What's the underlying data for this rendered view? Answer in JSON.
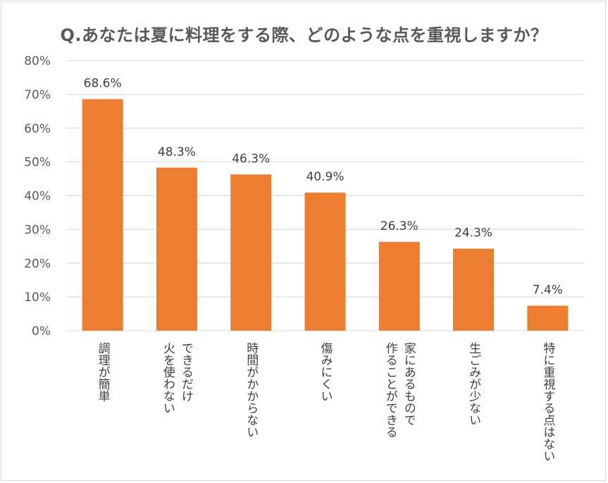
{
  "chart_data": {
    "type": "bar",
    "title": "Q.あなたは夏に料理をする際、どのような点を重視しますか？",
    "categories": [
      [
        "調理が簡単"
      ],
      [
        "火を使わない",
        "できるだけ"
      ],
      [
        "時間がかからない"
      ],
      [
        "傷みにくい"
      ],
      [
        "作ることができる",
        "家にあるもので"
      ],
      [
        "生ごみが少ない"
      ],
      [
        "特に重視する点はない"
      ]
    ],
    "values": [
      68.6,
      48.3,
      46.3,
      40.9,
      26.3,
      24.3,
      7.4
    ],
    "data_labels": [
      "68.6%",
      "48.3%",
      "46.3%",
      "40.9%",
      "26.3%",
      "24.3%",
      "7.4%"
    ],
    "yticks": [
      "0%",
      "10%",
      "20%",
      "30%",
      "40%",
      "50%",
      "60%",
      "70%",
      "80%"
    ],
    "ylim": [
      0,
      80
    ],
    "grid": true,
    "colors": {
      "bar": "#ED7D31",
      "grid": "#d9d9d9"
    }
  }
}
